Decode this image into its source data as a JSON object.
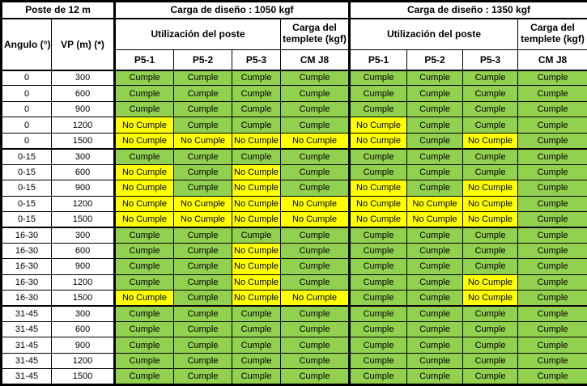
{
  "colors": {
    "pass_green": "#92D050",
    "fail_yellow": "#FFFF00",
    "border_black": "#000000",
    "header_bg": "#FFFFFF"
  },
  "values": {
    "pass": "Cumple",
    "fail": "No Cumple"
  },
  "header": {
    "corner": "Poste de 12 m",
    "angle_col": "Angulo (°)",
    "vp_col": "VP (m) (*)",
    "sections": [
      {
        "title": "Carga de diseño : 1050 kgf",
        "utilization": "Utilización del poste",
        "templete": "Carga del templete (kgf)",
        "pole_cols": [
          "P5-1",
          "P5-2",
          "P5-3"
        ],
        "templete_col": "CM J8"
      },
      {
        "title": "Carga de diseño : 1350 kgf",
        "utilization": "Utilización del poste",
        "templete": "Carga del templete (kgf)",
        "pole_cols": [
          "P5-1",
          "P5-2",
          "P5-3"
        ],
        "templete_col": "CM J8"
      }
    ]
  },
  "rows": [
    {
      "angle": "0",
      "vp": "300",
      "cells": [
        "Cumple",
        "Cumple",
        "Cumple",
        "Cumple",
        "Cumple",
        "Cumple",
        "Cumple",
        "Cumple"
      ]
    },
    {
      "angle": "0",
      "vp": "600",
      "cells": [
        "Cumple",
        "Cumple",
        "Cumple",
        "Cumple",
        "Cumple",
        "Cumple",
        "Cumple",
        "Cumple"
      ]
    },
    {
      "angle": "0",
      "vp": "900",
      "cells": [
        "Cumple",
        "Cumple",
        "Cumple",
        "Cumple",
        "Cumple",
        "Cumple",
        "Cumple",
        "Cumple"
      ]
    },
    {
      "angle": "0",
      "vp": "1200",
      "cells": [
        "No Cumple",
        "Cumple",
        "Cumple",
        "Cumple",
        "No Cumple",
        "Cumple",
        "Cumple",
        "Cumple"
      ]
    },
    {
      "angle": "0",
      "vp": "1500",
      "cells": [
        "No Cumple",
        "No Cumple",
        "No Cumple",
        "No Cumple",
        "No Cumple",
        "Cumple",
        "No Cumple",
        "Cumple"
      ]
    },
    {
      "angle": "0-15",
      "vp": "300",
      "cells": [
        "Cumple",
        "Cumple",
        "Cumple",
        "Cumple",
        "Cumple",
        "Cumple",
        "Cumple",
        "Cumple"
      ]
    },
    {
      "angle": "0-15",
      "vp": "600",
      "cells": [
        "No Cumple",
        "Cumple",
        "No Cumple",
        "Cumple",
        "Cumple",
        "Cumple",
        "Cumple",
        "Cumple"
      ]
    },
    {
      "angle": "0-15",
      "vp": "900",
      "cells": [
        "No Cumple",
        "Cumple",
        "No Cumple",
        "Cumple",
        "No Cumple",
        "Cumple",
        "No Cumple",
        "Cumple"
      ]
    },
    {
      "angle": "0-15",
      "vp": "1200",
      "cells": [
        "No Cumple",
        "No Cumple",
        "No Cumple",
        "No Cumple",
        "No Cumple",
        "No Cumple",
        "No Cumple",
        "Cumple"
      ]
    },
    {
      "angle": "0-15",
      "vp": "1500",
      "cells": [
        "No Cumple",
        "No Cumple",
        "No Cumple",
        "No Cumple",
        "No Cumple",
        "No Cumple",
        "No Cumple",
        "Cumple"
      ]
    },
    {
      "angle": "16-30",
      "vp": "300",
      "cells": [
        "Cumple",
        "Cumple",
        "Cumple",
        "Cumple",
        "Cumple",
        "Cumple",
        "Cumple",
        "Cumple"
      ]
    },
    {
      "angle": "16-30",
      "vp": "600",
      "cells": [
        "Cumple",
        "Cumple",
        "No Cumple",
        "Cumple",
        "Cumple",
        "Cumple",
        "Cumple",
        "Cumple"
      ]
    },
    {
      "angle": "16-30",
      "vp": "900",
      "cells": [
        "Cumple",
        "Cumple",
        "No Cumple",
        "Cumple",
        "Cumple",
        "Cumple",
        "Cumple",
        "Cumple"
      ]
    },
    {
      "angle": "16-30",
      "vp": "1200",
      "cells": [
        "Cumple",
        "Cumple",
        "No Cumple",
        "Cumple",
        "Cumple",
        "Cumple",
        "No Cumple",
        "Cumple"
      ]
    },
    {
      "angle": "16-30",
      "vp": "1500",
      "cells": [
        "No Cumple",
        "Cumple",
        "No Cumple",
        "No Cumple",
        "Cumple",
        "Cumple",
        "No Cumple",
        "Cumple"
      ]
    },
    {
      "angle": "31-45",
      "vp": "300",
      "cells": [
        "Cumple",
        "Cumple",
        "Cumple",
        "Cumple",
        "Cumple",
        "Cumple",
        "Cumple",
        "Cumple"
      ]
    },
    {
      "angle": "31-45",
      "vp": "600",
      "cells": [
        "Cumple",
        "Cumple",
        "Cumple",
        "Cumple",
        "Cumple",
        "Cumple",
        "Cumple",
        "Cumple"
      ]
    },
    {
      "angle": "31-45",
      "vp": "900",
      "cells": [
        "Cumple",
        "Cumple",
        "Cumple",
        "Cumple",
        "Cumple",
        "Cumple",
        "Cumple",
        "Cumple"
      ]
    },
    {
      "angle": "31-45",
      "vp": "1200",
      "cells": [
        "Cumple",
        "Cumple",
        "Cumple",
        "Cumple",
        "Cumple",
        "Cumple",
        "Cumple",
        "Cumple"
      ]
    },
    {
      "angle": "31-45",
      "vp": "1500",
      "cells": [
        "Cumple",
        "Cumple",
        "Cumple",
        "Cumple",
        "Cumple",
        "Cumple",
        "Cumple",
        "Cumple"
      ]
    }
  ]
}
